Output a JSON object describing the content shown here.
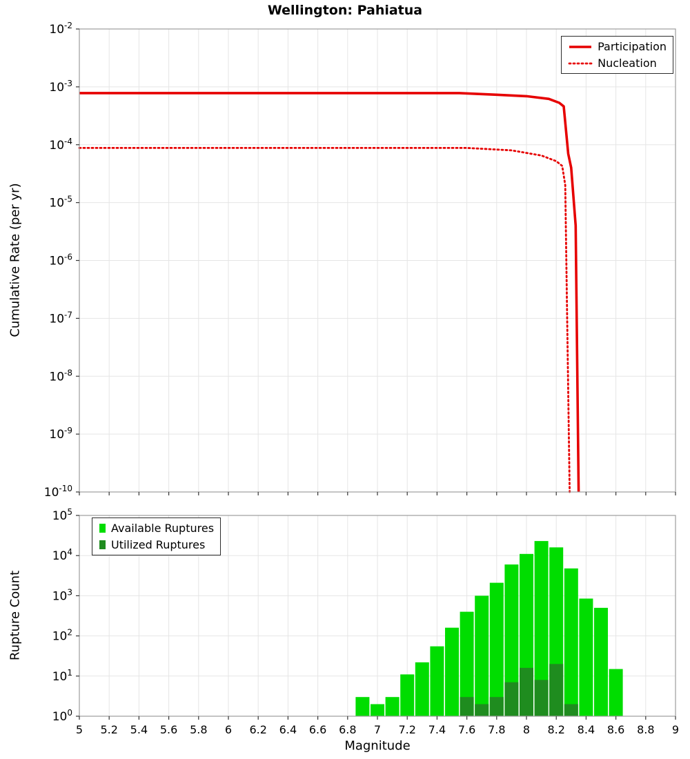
{
  "title": "Wellington: Pahiatua",
  "chart_data": [
    {
      "type": "line",
      "title": "Wellington: Pahiatua",
      "xlabel": "",
      "ylabel": "Cumulative Rate (per yr)",
      "x_range": [
        5,
        9
      ],
      "x_tick_step": 0.2,
      "y_log_range": [
        -10,
        -2
      ],
      "y_scale": "log",
      "grid": true,
      "legend_position": "top-right",
      "series": [
        {
          "name": "Participation",
          "color": "#e60000",
          "line_style": "solid",
          "points": [
            [
              5.0,
              0.00078
            ],
            [
              6.0,
              0.00078
            ],
            [
              7.0,
              0.00078
            ],
            [
              7.55,
              0.00078
            ],
            [
              7.8,
              0.00073
            ],
            [
              8.0,
              0.00069
            ],
            [
              8.15,
              0.00062
            ],
            [
              8.22,
              0.00053
            ],
            [
              8.25,
              0.00046
            ],
            [
              8.28,
              7e-05
            ],
            [
              8.3,
              4e-05
            ],
            [
              8.33,
              4e-06
            ],
            [
              8.35,
              1e-10
            ]
          ]
        },
        {
          "name": "Nucleation",
          "color": "#e60000",
          "line_style": "dotted",
          "points": [
            [
              5.0,
              8.8e-05
            ],
            [
              6.0,
              8.8e-05
            ],
            [
              7.0,
              8.8e-05
            ],
            [
              7.6,
              8.8e-05
            ],
            [
              7.9,
              8e-05
            ],
            [
              8.1,
              6.5e-05
            ],
            [
              8.2,
              5.2e-05
            ],
            [
              8.24,
              4.3e-05
            ],
            [
              8.26,
              2e-05
            ],
            [
              8.29,
              1e-10
            ]
          ]
        }
      ]
    },
    {
      "type": "bar",
      "xlabel": "Magnitude",
      "ylabel": "Rupture Count",
      "x_range": [
        5,
        9
      ],
      "x_tick_step": 0.2,
      "y_log_range": [
        0,
        5
      ],
      "y_scale": "log",
      "grid": true,
      "bar_width": 0.1,
      "legend_position": "top-left",
      "x_tick_labels": [
        "5",
        "5.2",
        "5.4",
        "5.6",
        "5.8",
        "6",
        "6.2",
        "6.4",
        "6.6",
        "6.8",
        "7",
        "7.2",
        "7.4",
        "7.6",
        "7.8",
        "8",
        "8.2",
        "8.4",
        "8.6",
        "8.8",
        "9"
      ],
      "categories": [
        6.9,
        7.0,
        7.1,
        7.2,
        7.3,
        7.4,
        7.5,
        7.6,
        7.7,
        7.8,
        7.9,
        8.0,
        8.1,
        8.2,
        8.3,
        8.4,
        8.5,
        8.6
      ],
      "series": [
        {
          "name": "Available Ruptures",
          "color": "#00dd00",
          "values": [
            3,
            2,
            3,
            11,
            22,
            55,
            160,
            400,
            1000,
            2100,
            6000,
            11000,
            23000,
            16000,
            4800,
            850,
            500,
            15
          ]
        },
        {
          "name": "Utilized Ruptures",
          "color": "#1f8c1f",
          "values": [
            0,
            0,
            0,
            0,
            0,
            0,
            0,
            3,
            2,
            3,
            7,
            16,
            8,
            20,
            2,
            0,
            0,
            0
          ]
        }
      ]
    }
  ]
}
